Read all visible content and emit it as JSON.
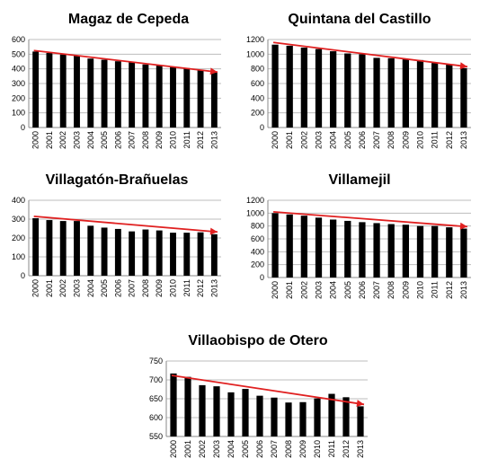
{
  "chart_data": [
    {
      "type": "bar",
      "title": "Magaz de Cepeda",
      "categories": [
        "2000",
        "2001",
        "2002",
        "2003",
        "2004",
        "2005",
        "2006",
        "2007",
        "2008",
        "2009",
        "2010",
        "2011",
        "2012",
        "2013"
      ],
      "values": [
        518,
        508,
        498,
        490,
        470,
        462,
        452,
        445,
        430,
        422,
        412,
        405,
        395,
        378
      ],
      "ylim": [
        0,
        600
      ],
      "yticks": [
        0,
        100,
        200,
        300,
        400,
        500,
        600
      ],
      "grid": true,
      "trend": {
        "start": 525,
        "end": 378,
        "color": "#e02020"
      }
    },
    {
      "type": "bar",
      "title": "Quintana del Castillo",
      "categories": [
        "2000",
        "2001",
        "2002",
        "2003",
        "2004",
        "2005",
        "2006",
        "2007",
        "2008",
        "2009",
        "2010",
        "2011",
        "2012",
        "2013"
      ],
      "values": [
        1130,
        1115,
        1090,
        1070,
        1040,
        1010,
        1000,
        950,
        945,
        930,
        920,
        880,
        860,
        810
      ],
      "ylim": [
        0,
        1200
      ],
      "yticks": [
        0,
        200,
        400,
        600,
        800,
        1000,
        1200
      ],
      "grid": true,
      "trend": {
        "start": 1160,
        "end": 830,
        "color": "#e02020"
      }
    },
    {
      "type": "bar",
      "title": "Villagatón-Brañuelas",
      "categories": [
        "2000",
        "2001",
        "2002",
        "2003",
        "2004",
        "2005",
        "2006",
        "2007",
        "2008",
        "2009",
        "2010",
        "2011",
        "2012",
        "2013"
      ],
      "values": [
        305,
        295,
        290,
        290,
        265,
        255,
        248,
        235,
        245,
        240,
        228,
        228,
        230,
        220
      ],
      "ylim": [
        0,
        400
      ],
      "yticks": [
        0,
        100,
        200,
        300,
        400
      ],
      "grid": true,
      "trend": {
        "start": 315,
        "end": 232,
        "color": "#e02020"
      }
    },
    {
      "type": "bar",
      "title": "Villamejil",
      "categories": [
        "2000",
        "2001",
        "2002",
        "2003",
        "2004",
        "2005",
        "2006",
        "2007",
        "2008",
        "2009",
        "2010",
        "2011",
        "2012",
        "2013"
      ],
      "values": [
        1000,
        980,
        960,
        930,
        900,
        880,
        860,
        845,
        830,
        820,
        800,
        800,
        780,
        760
      ],
      "ylim": [
        0,
        1200
      ],
      "yticks": [
        0,
        200,
        400,
        600,
        800,
        1000,
        1200
      ],
      "grid": true,
      "trend": {
        "start": 1020,
        "end": 790,
        "color": "#e02020"
      }
    },
    {
      "type": "bar",
      "title": "Villaobispo de Otero",
      "categories": [
        "2000",
        "2001",
        "2002",
        "2003",
        "2004",
        "2005",
        "2006",
        "2007",
        "2008",
        "2009",
        "2010",
        "2011",
        "2012",
        "2013"
      ],
      "values": [
        717,
        708,
        686,
        683,
        667,
        676,
        658,
        653,
        640,
        641,
        651,
        663,
        654,
        630
      ],
      "ylim": [
        550,
        750
      ],
      "yticks": [
        550,
        600,
        650,
        700,
        750
      ],
      "grid": true,
      "trend": {
        "start": 712,
        "end": 635,
        "color": "#e02020"
      }
    }
  ]
}
